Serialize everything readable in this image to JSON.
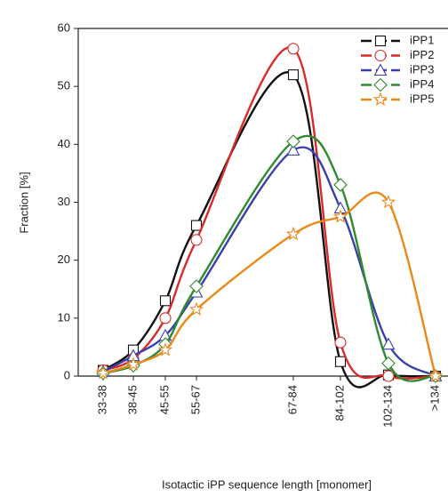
{
  "chart_data": {
    "type": "line",
    "x_label": "Isotactic iPP sequence length [monomer]",
    "y_label": "Fraction [%]",
    "categories": [
      "33-38",
      "38-45",
      "45-55",
      "55-67",
      "67-84",
      "84-102",
      "102-134",
      ">134"
    ],
    "ylim": [
      0,
      60
    ],
    "yticks": [
      0,
      10,
      20,
      30,
      40,
      50,
      60
    ],
    "legend": "top-right",
    "series": [
      {
        "name": "iPP1",
        "color": "#111111",
        "marker": "square",
        "values": [
          1,
          4.5,
          13,
          26,
          52,
          2.5,
          0.2,
          0
        ]
      },
      {
        "name": "iPP2",
        "color": "#d92a2a",
        "marker": "circle",
        "values": [
          1,
          3,
          10,
          23.5,
          56.5,
          5.8,
          0,
          0
        ]
      },
      {
        "name": "iPP3",
        "color": "#3a3fae",
        "marker": "triangle",
        "values": [
          0.8,
          3.5,
          7,
          14.5,
          39,
          29,
          5.5,
          0
        ]
      },
      {
        "name": "iPP4",
        "color": "#2f8a2f",
        "marker": "diamond",
        "values": [
          0.5,
          1.8,
          5.5,
          15.5,
          40.5,
          33,
          2.2,
          0
        ]
      },
      {
        "name": "iPP5",
        "color": "#e8891a",
        "marker": "star",
        "values": [
          0.5,
          2,
          4.5,
          11.5,
          24.5,
          27.5,
          30,
          0
        ]
      }
    ]
  }
}
